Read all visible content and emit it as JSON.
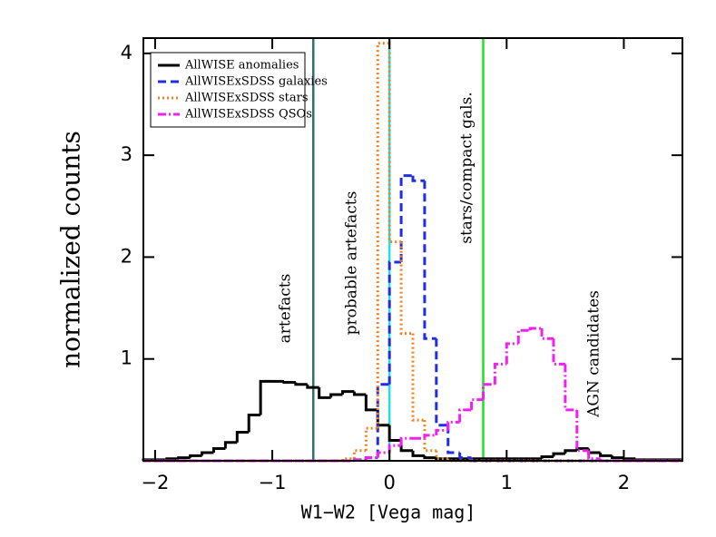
{
  "chart_data": {
    "type": "step-histogram",
    "xlabel": "W1−W2 [Vega mag]",
    "ylabel": "normalized counts",
    "xlim": [
      -2.1,
      2.5
    ],
    "ylim": [
      0,
      4.15
    ],
    "xticks": [
      {
        "value": -2,
        "label": "−2"
      },
      {
        "value": -1,
        "label": "−1"
      },
      0,
      1,
      2
    ],
    "yticks": [
      1,
      2,
      3,
      4
    ],
    "bins": [
      -2.1,
      -2.0,
      -1.9,
      -1.8,
      -1.7,
      -1.6,
      -1.5,
      -1.4,
      -1.3,
      -1.2,
      -1.1,
      -1.0,
      -0.9,
      -0.8,
      -0.7,
      -0.6,
      -0.5,
      -0.4,
      -0.3,
      -0.2,
      -0.1,
      0.0,
      0.1,
      0.2,
      0.3,
      0.4,
      0.5,
      0.6,
      0.7,
      0.8,
      0.9,
      1.0,
      1.1,
      1.2,
      1.3,
      1.4,
      1.5,
      1.6,
      1.7,
      1.8,
      1.9,
      2.0,
      2.1,
      2.2,
      2.3,
      2.4,
      2.5
    ],
    "series": [
      {
        "name": "AllWISE anomalies",
        "color": "#000000",
        "dash": "solid",
        "values": [
          0.01,
          0.01,
          0.02,
          0.03,
          0.05,
          0.08,
          0.12,
          0.18,
          0.28,
          0.45,
          0.78,
          0.78,
          0.77,
          0.75,
          0.72,
          0.62,
          0.65,
          0.68,
          0.65,
          0.5,
          0.35,
          0.2,
          0.1,
          0.05,
          0.03,
          0.02,
          0.02,
          0.02,
          0.02,
          0.02,
          0.02,
          0.02,
          0.02,
          0.02,
          0.04,
          0.07,
          0.1,
          0.12,
          0.08,
          0.05,
          0.03,
          0.02,
          0.01,
          0.01,
          0.01,
          0.01
        ]
      },
      {
        "name": "AllWISExSDSS galaxies",
        "color": "#1f2fe0",
        "dash": "dashed",
        "values": [
          0,
          0,
          0,
          0,
          0,
          0,
          0,
          0,
          0,
          0,
          0,
          0,
          0,
          0,
          0,
          0,
          0,
          0,
          0.01,
          0.03,
          0.75,
          1.95,
          2.8,
          2.75,
          1.2,
          0.35,
          0.08,
          0.03,
          0,
          0,
          0,
          0,
          0,
          0,
          0,
          0,
          0,
          0,
          0,
          0,
          0,
          0,
          0,
          0,
          0,
          0
        ]
      },
      {
        "name": "AllWISExSDSS stars",
        "color": "#f08020",
        "dash": "dotted",
        "values": [
          0,
          0,
          0,
          0,
          0,
          0,
          0,
          0,
          0,
          0,
          0,
          0,
          0,
          0,
          0,
          0,
          0,
          0.02,
          0.1,
          0.32,
          4.1,
          2.15,
          1.25,
          0.4,
          0.1,
          0.02,
          0,
          0,
          0,
          0,
          0,
          0,
          0,
          0,
          0,
          0,
          0,
          0,
          0,
          0,
          0,
          0,
          0,
          0,
          0,
          0
        ]
      },
      {
        "name": "AllWISExSDSS QSOs",
        "color": "#f020f0",
        "dash": "dashdot",
        "values": [
          0,
          0,
          0,
          0,
          0,
          0,
          0,
          0,
          0,
          0,
          0,
          0,
          0,
          0,
          0,
          0,
          0,
          0,
          0.01,
          0.03,
          0.08,
          0.15,
          0.22,
          0.22,
          0.25,
          0.3,
          0.38,
          0.5,
          0.6,
          0.75,
          0.95,
          1.15,
          1.28,
          1.3,
          1.2,
          0.95,
          0.5,
          0.1,
          0.02,
          0,
          0,
          0,
          0,
          0,
          0,
          0
        ]
      }
    ],
    "vlines": [
      {
        "x": -0.65,
        "color": "#2f7070"
      },
      {
        "x": 0,
        "color": "#20e0e8"
      },
      {
        "x": 0.8,
        "color": "#20e020"
      }
    ],
    "annotations": [
      "artefacts",
      "probable artefacts",
      "stars/compact gals.",
      "AGN candidates"
    ],
    "legend": "upper left"
  }
}
